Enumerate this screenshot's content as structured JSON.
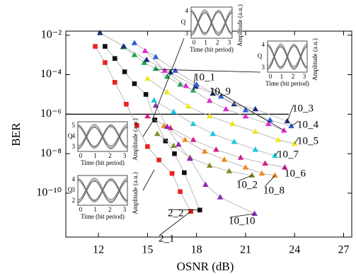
{
  "chart_data": {
    "type": "line",
    "x_label": "OSNR (dB)",
    "y_label": "BER",
    "xlim": [
      10,
      27.5
    ],
    "xticks": [
      12,
      15,
      18,
      21,
      24,
      27
    ],
    "ylim": [
      6e-13,
      0.016
    ],
    "log_y": true,
    "yticks": [
      {
        "value": 0.01,
        "label": "10⁻²"
      },
      {
        "value": 0.0001,
        "label": "10⁻⁴"
      },
      {
        "value": 1e-06,
        "label": "10⁻⁶"
      },
      {
        "value": 1e-08,
        "label": "10⁻⁸"
      },
      {
        "value": 1e-10,
        "label": "10⁻¹⁰"
      }
    ],
    "threshold": 1e-06,
    "series": [
      {
        "name": "2_1",
        "color": "#e8231f",
        "marker": "square",
        "x": [
          11.8,
          12.4,
          13.0,
          13.7,
          14.35,
          15.0,
          15.7,
          16.5,
          17.0,
          17.65
        ],
        "values": [
          0.0027,
          0.00041,
          4.1e-05,
          3.2e-06,
          2.7e-07,
          2.3e-08,
          4.8e-09,
          1e-09,
          1.2e-10,
          1.2e-11
        ]
      },
      {
        "name": "2_2",
        "color": "#111111",
        "marker": "square",
        "x": [
          12.4,
          13.0,
          13.6,
          14.2,
          14.9,
          15.45,
          16.1,
          16.65,
          17.25,
          18.2
        ],
        "values": [
          0.0027,
          0.00066,
          0.00014,
          3.5e-05,
          1e-05,
          5.1e-07,
          4.4e-08,
          1e-08,
          1.1e-09,
          1.4e-11
        ]
      },
      {
        "name": "10_1",
        "color": "#1aa64a",
        "marker": "triangle",
        "x": [
          13.5,
          14.2,
          14.8,
          15.5,
          16.2,
          17.0,
          17.8
        ],
        "values": [
          0.0025,
          0.001,
          0.0004,
          0.0002,
          7.9e-05,
          3.2e-05,
          1.6e-05
        ]
      },
      {
        "name": "10_2",
        "color": "#8a8a2a",
        "marker": "triangle",
        "x": [
          15.6,
          16.6,
          17.6,
          18.8,
          20.0,
          21.4
        ],
        "values": [
          1e-07,
          2.5e-08,
          6.3e-09,
          2.5e-09,
          1.3e-09,
          7.9e-10
        ]
      },
      {
        "name": "10_3",
        "color": "#1f2a7a",
        "marker": "triangle",
        "x": [
          12.1,
          13.55,
          14.95,
          16.4,
          17.95,
          19.0,
          20.3,
          21.6,
          23.55
        ],
        "values": [
          0.013,
          0.0027,
          0.00056,
          0.00013,
          2.5e-05,
          1.1e-05,
          3.2e-06,
          1.8e-06,
          4.4e-07
        ]
      },
      {
        "name": "10_4",
        "color": "#2a5fd0",
        "marker": "triangle",
        "x": [
          14.2,
          15.5,
          16.7,
          18.0,
          19.5,
          21.0,
          22.5,
          23.8
        ],
        "values": [
          0.004,
          0.00079,
          0.00016,
          3.2e-05,
          7.9e-06,
          1.6e-06,
          5e-07,
          2.5e-07
        ]
      },
      {
        "name": "10_5",
        "color": "#f2e51a",
        "marker": "triangle",
        "x": [
          15.0,
          16.2,
          17.5,
          18.8,
          20.2,
          21.6,
          23.0,
          24.0
        ],
        "values": [
          6.3e-05,
          1.3e-05,
          2.5e-06,
          7.9e-07,
          3.2e-07,
          1.3e-07,
          5e-08,
          3.2e-08
        ]
      },
      {
        "name": "10_6",
        "color": "#d0208a",
        "marker": "triangle",
        "x": [
          15.0,
          16.4,
          17.8,
          19.2,
          20.7,
          22.2,
          23.4
        ],
        "values": [
          7.9e-07,
          2e-07,
          5e-08,
          1.6e-08,
          6.3e-09,
          3.2e-09,
          2e-09
        ]
      },
      {
        "name": "10_7",
        "color": "#19c8e0",
        "marker": "triangle",
        "x": [
          15.4,
          16.6,
          17.8,
          19.0,
          20.3,
          21.6,
          22.8
        ],
        "values": [
          5e-06,
          1.3e-06,
          3.2e-07,
          1e-07,
          4e-08,
          1.6e-08,
          7.9e-09
        ]
      },
      {
        "name": "10_8",
        "color": "#f08a1a",
        "marker": "triangle",
        "x": [
          16.0,
          17.3,
          18.5,
          19.7,
          21.0,
          22.0,
          22.8
        ],
        "values": [
          2.5e-07,
          5e-08,
          1.3e-08,
          5e-09,
          2e-09,
          1e-09,
          7.9e-10
        ]
      },
      {
        "name": "10_9",
        "color": "#e02ad0",
        "marker": "triangle",
        "x": [
          14.85,
          16.05,
          17.35,
          18.8,
          19.8,
          21.0,
          22.4,
          23.35
        ],
        "values": [
          0.0016,
          0.00016,
          2.7e-05,
          4.8e-06,
          1.8e-06,
          7.8e-07,
          3.2e-07,
          1.5e-07
        ]
      },
      {
        "name": "10_10",
        "color": "#8a2ab0",
        "marker": "triangle",
        "x": [
          15.5,
          16.2,
          16.9,
          17.6,
          18.55,
          19.45,
          21.55
        ],
        "values": [
          2.7e-06,
          2.3e-07,
          2.9e-08,
          5.6e-09,
          2.7e-10,
          6.2e-11,
          9.1e-12
        ]
      }
    ],
    "insets": [
      {
        "x_label": "Time (bit period)",
        "y_label": "Amplitude (a.u.)",
        "q_label": "Q",
        "xticks": [
          0,
          1,
          2,
          3
        ],
        "qticks": [
          3,
          4
        ]
      },
      {
        "x_label": "Time (bit period)",
        "y_label": "Amplitude (a.u.)",
        "q_label": "Q",
        "xticks": [
          0,
          1,
          2,
          3
        ],
        "qticks": [
          3,
          4
        ]
      },
      {
        "x_label": "Time (bit period)",
        "y_label": "Amplitude (a.u.)",
        "q_label": "Q",
        "xticks": [
          0,
          1,
          2,
          3
        ],
        "qticks": [
          3,
          4,
          5
        ]
      },
      {
        "x_label": "Time (bit period)",
        "y_label": "Amplitude (a.u.)",
        "q_label": "Q",
        "xticks": [
          0,
          1,
          2,
          3
        ],
        "qticks": [
          2,
          3,
          4
        ]
      }
    ]
  }
}
